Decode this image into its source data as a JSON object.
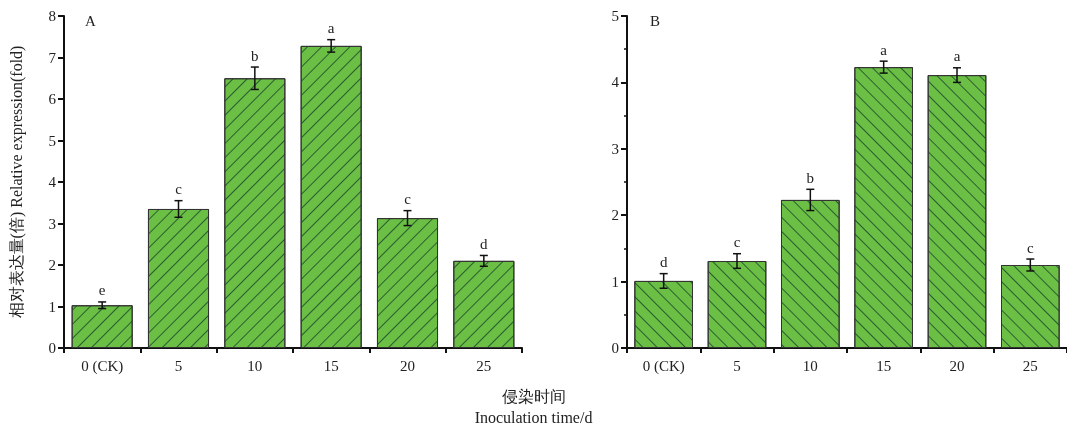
{
  "chart_data": [
    {
      "type": "bar",
      "title": "A",
      "ylabel": "相对表达量(倍) Relative expression(fold)",
      "xlabel": "侵染时间\nInoculation time/d",
      "categories": [
        "0 (CK)",
        "5",
        "10",
        "15",
        "20",
        "25"
      ],
      "color": "#6bbf45",
      "values": [
        1.03,
        3.35,
        6.5,
        7.28,
        3.13,
        2.1
      ],
      "errors": [
        0.08,
        0.2,
        0.27,
        0.15,
        0.18,
        0.13
      ],
      "ylim": [
        0,
        8
      ],
      "yticks": [
        0,
        1,
        2,
        3,
        4,
        5,
        6,
        7,
        8
      ],
      "grid": false,
      "annotations": [
        {
          "text": "e",
          "x": "0 (CK)",
          "y": 1.11
        },
        {
          "text": "c",
          "x": "5",
          "y": 3.55
        },
        {
          "text": "b",
          "x": "10",
          "y": 6.77
        },
        {
          "text": "a",
          "x": "15",
          "y": 7.43
        },
        {
          "text": "c",
          "x": "20",
          "y": 3.31
        },
        {
          "text": "d",
          "x": "25",
          "y": 2.23
        }
      ]
    },
    {
      "type": "bar",
      "title": "B",
      "categories": [
        "0 (CK)",
        "5",
        "10",
        "15",
        "20",
        "25"
      ],
      "color": "#6bbf45",
      "values": [
        1.01,
        1.31,
        2.23,
        4.23,
        4.11,
        1.25
      ],
      "errors": [
        0.11,
        0.11,
        0.16,
        0.09,
        0.11,
        0.09
      ],
      "ylim": [
        0,
        5
      ],
      "yticks": [
        0,
        1,
        2,
        3,
        4,
        5
      ],
      "grid": false,
      "annotations": [
        {
          "text": "d",
          "x": "0 (CK)",
          "y": 1.12
        },
        {
          "text": "c",
          "x": "5",
          "y": 1.42
        },
        {
          "text": "b",
          "x": "10",
          "y": 2.39
        },
        {
          "text": "a",
          "x": "15",
          "y": 4.32
        },
        {
          "text": "a",
          "x": "20",
          "y": 4.22
        },
        {
          "text": "c",
          "x": "25",
          "y": 1.34
        }
      ]
    }
  ]
}
